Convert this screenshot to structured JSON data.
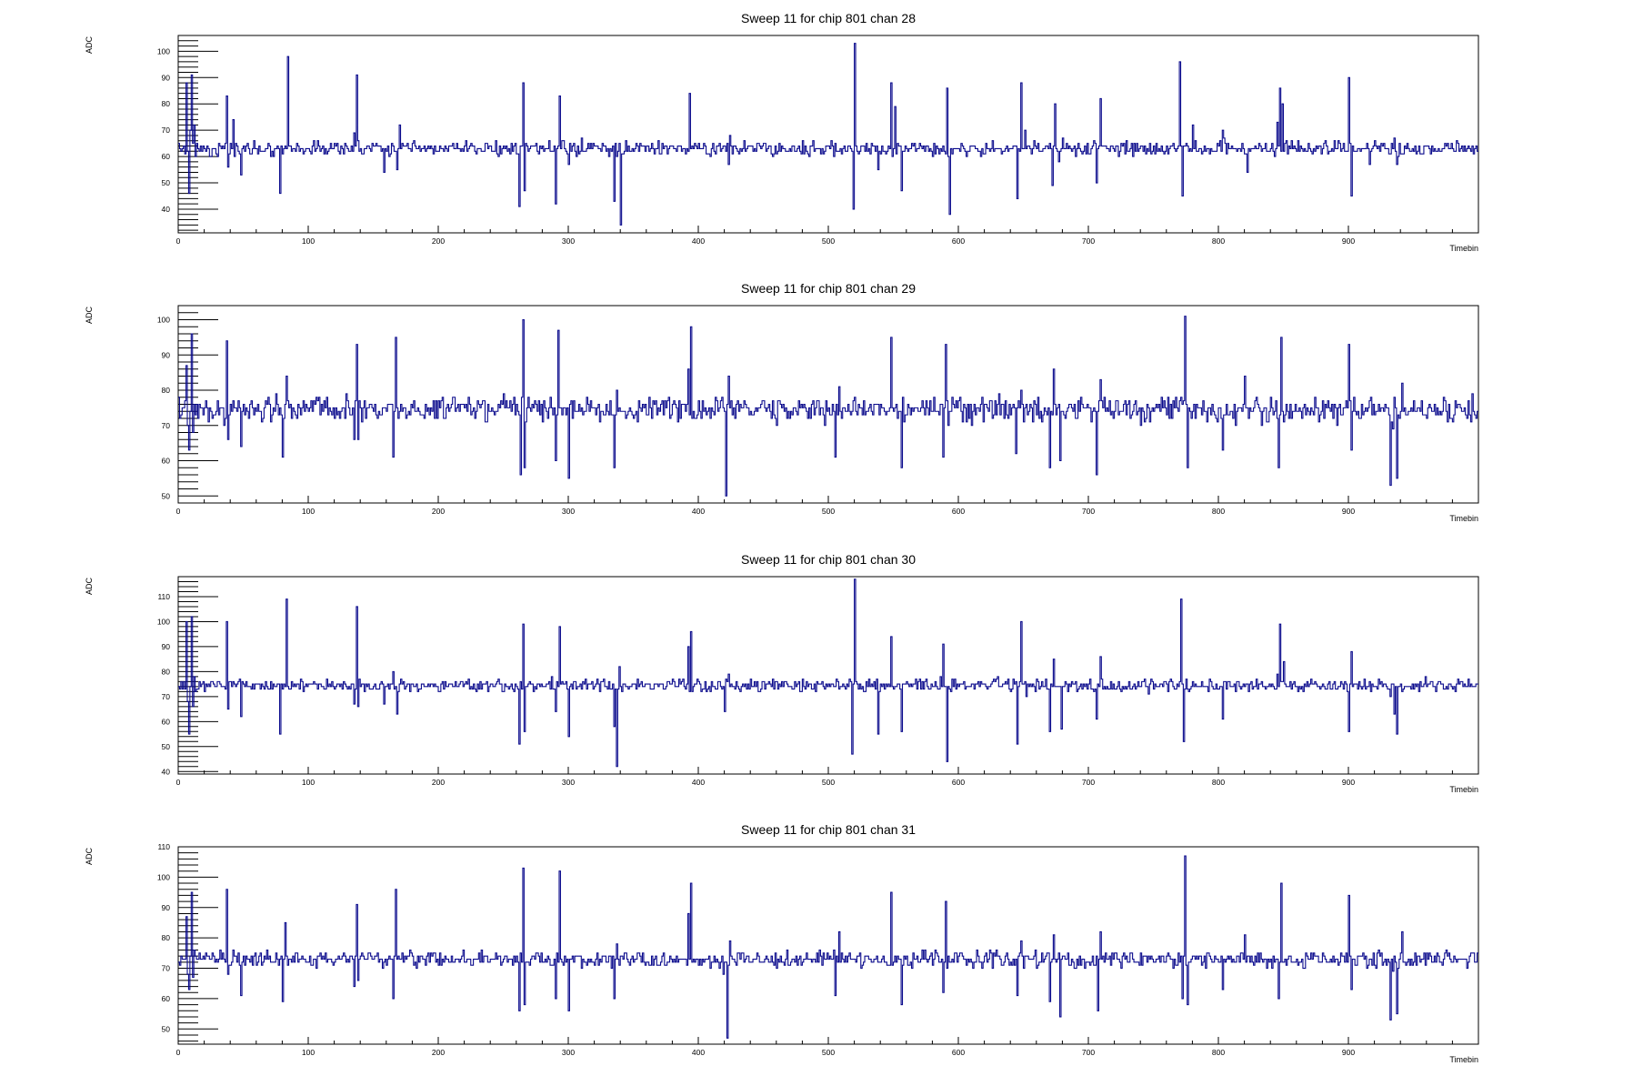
{
  "chart_data": [
    {
      "type": "line",
      "step": true,
      "title": "Sweep 11 for chip 801 chan 28",
      "xlabel": "Timebin",
      "ylabel": "ADC",
      "xlim": [
        0,
        1000
      ],
      "ylim": [
        31,
        106
      ],
      "xticks": [
        0,
        100,
        200,
        300,
        400,
        500,
        600,
        700,
        800,
        900
      ],
      "yticks": [
        40,
        50,
        60,
        70,
        80,
        90,
        100
      ],
      "baseline": 63,
      "noise": 1.6,
      "line_color": "#0a0a8c",
      "spikes": [
        [
          6,
          88
        ],
        [
          7,
          62
        ],
        [
          8,
          46
        ],
        [
          9,
          70
        ],
        [
          10,
          91
        ],
        [
          11,
          65
        ],
        [
          12,
          72
        ],
        [
          25,
          60
        ],
        [
          37,
          83
        ],
        [
          38,
          56
        ],
        [
          42,
          74
        ],
        [
          48,
          53
        ],
        [
          78,
          46
        ],
        [
          84,
          98
        ],
        [
          135,
          69
        ],
        [
          137,
          91
        ],
        [
          138,
          66
        ],
        [
          158,
          54
        ],
        [
          168,
          55
        ],
        [
          170,
          72
        ],
        [
          262,
          41
        ],
        [
          265,
          88
        ],
        [
          266,
          47
        ],
        [
          290,
          42
        ],
        [
          293,
          83
        ],
        [
          300,
          57
        ],
        [
          310,
          67
        ],
        [
          335,
          43
        ],
        [
          340,
          34
        ],
        [
          393,
          84
        ],
        [
          395,
          64
        ],
        [
          423,
          57
        ],
        [
          424,
          68
        ],
        [
          519,
          40
        ],
        [
          520,
          103
        ],
        [
          538,
          55
        ],
        [
          548,
          88
        ],
        [
          551,
          79
        ],
        [
          556,
          47
        ],
        [
          591,
          86
        ],
        [
          593,
          38
        ],
        [
          645,
          44
        ],
        [
          648,
          88
        ],
        [
          651,
          70
        ],
        [
          672,
          49
        ],
        [
          674,
          80
        ],
        [
          677,
          58
        ],
        [
          680,
          67
        ],
        [
          706,
          50
        ],
        [
          709,
          82
        ],
        [
          770,
          96
        ],
        [
          772,
          45
        ],
        [
          775,
          65
        ],
        [
          780,
          72
        ],
        [
          803,
          70
        ],
        [
          804,
          67
        ],
        [
          822,
          54
        ],
        [
          845,
          73
        ],
        [
          847,
          86
        ],
        [
          849,
          80
        ],
        [
          852,
          66
        ],
        [
          900,
          90
        ],
        [
          902,
          45
        ],
        [
          916,
          57
        ],
        [
          935,
          67
        ],
        [
          937,
          57
        ]
      ]
    },
    {
      "type": "line",
      "step": true,
      "title": "Sweep 11 for chip 801 chan 29",
      "xlabel": "Timebin",
      "ylabel": "ADC",
      "xlim": [
        0,
        1000
      ],
      "ylim": [
        48,
        104
      ],
      "xticks": [
        0,
        100,
        200,
        300,
        400,
        500,
        600,
        700,
        800,
        900
      ],
      "yticks": [
        50,
        60,
        70,
        80,
        90,
        100
      ],
      "baseline": 74.5,
      "noise": 2.2,
      "line_color": "#0a0a8c",
      "spikes": [
        [
          6,
          87
        ],
        [
          7,
          70
        ],
        [
          8,
          63
        ],
        [
          9,
          74
        ],
        [
          10,
          96
        ],
        [
          11,
          68
        ],
        [
          12,
          76
        ],
        [
          37,
          94
        ],
        [
          38,
          66
        ],
        [
          42,
          77
        ],
        [
          48,
          64
        ],
        [
          80,
          61
        ],
        [
          83,
          84
        ],
        [
          135,
          66
        ],
        [
          137,
          93
        ],
        [
          138,
          66
        ],
        [
          158,
          75
        ],
        [
          165,
          61
        ],
        [
          167,
          95
        ],
        [
          263,
          56
        ],
        [
          265,
          100
        ],
        [
          266,
          58
        ],
        [
          290,
          60
        ],
        [
          292,
          97
        ],
        [
          300,
          55
        ],
        [
          335,
          58
        ],
        [
          337,
          80
        ],
        [
          392,
          86
        ],
        [
          394,
          98
        ],
        [
          395,
          72
        ],
        [
          421,
          50
        ],
        [
          423,
          84
        ],
        [
          460,
          70
        ],
        [
          505,
          61
        ],
        [
          508,
          81
        ],
        [
          548,
          95
        ],
        [
          556,
          58
        ],
        [
          588,
          61
        ],
        [
          590,
          93
        ],
        [
          644,
          62
        ],
        [
          648,
          80
        ],
        [
          670,
          58
        ],
        [
          673,
          86
        ],
        [
          678,
          60
        ],
        [
          680,
          74
        ],
        [
          706,
          56
        ],
        [
          709,
          83
        ],
        [
          772,
          76
        ],
        [
          774,
          101
        ],
        [
          776,
          58
        ],
        [
          780,
          74
        ],
        [
          803,
          63
        ],
        [
          820,
          84
        ],
        [
          846,
          58
        ],
        [
          848,
          95
        ],
        [
          851,
          73
        ],
        [
          900,
          93
        ],
        [
          902,
          63
        ],
        [
          932,
          53
        ],
        [
          934,
          69
        ],
        [
          937,
          55
        ],
        [
          941,
          82
        ]
      ]
    },
    {
      "type": "line",
      "step": true,
      "title": "Sweep 11 for chip 801 chan 30",
      "xlabel": "Timebin",
      "ylabel": "ADC",
      "xlim": [
        0,
        1000
      ],
      "ylim": [
        39,
        118
      ],
      "xticks": [
        0,
        100,
        200,
        300,
        400,
        500,
        600,
        700,
        800,
        900
      ],
      "yticks": [
        40,
        50,
        60,
        70,
        80,
        90,
        100,
        110
      ],
      "baseline": 74.5,
      "noise": 1.5,
      "line_color": "#0a0a8c",
      "spikes": [
        [
          6,
          100
        ],
        [
          7,
          68
        ],
        [
          8,
          55
        ],
        [
          9,
          74
        ],
        [
          10,
          102
        ],
        [
          11,
          66
        ],
        [
          12,
          78
        ],
        [
          37,
          100
        ],
        [
          38,
          65
        ],
        [
          42,
          76
        ],
        [
          48,
          62
        ],
        [
          78,
          55
        ],
        [
          83,
          109
        ],
        [
          135,
          67
        ],
        [
          137,
          106
        ],
        [
          138,
          66
        ],
        [
          158,
          67
        ],
        [
          165,
          80
        ],
        [
          168,
          63
        ],
        [
          262,
          51
        ],
        [
          265,
          99
        ],
        [
          266,
          56
        ],
        [
          290,
          64
        ],
        [
          293,
          98
        ],
        [
          300,
          54
        ],
        [
          335,
          58
        ],
        [
          337,
          42
        ],
        [
          339,
          82
        ],
        [
          392,
          90
        ],
        [
          394,
          96
        ],
        [
          395,
          72
        ],
        [
          420,
          64
        ],
        [
          423,
          79
        ],
        [
          518,
          47
        ],
        [
          520,
          117
        ],
        [
          538,
          55
        ],
        [
          548,
          94
        ],
        [
          556,
          56
        ],
        [
          588,
          91
        ],
        [
          591,
          44
        ],
        [
          645,
          51
        ],
        [
          648,
          100
        ],
        [
          652,
          70
        ],
        [
          670,
          56
        ],
        [
          673,
          85
        ],
        [
          679,
          57
        ],
        [
          706,
          61
        ],
        [
          709,
          86
        ],
        [
          771,
          109
        ],
        [
          773,
          52
        ],
        [
          779,
          74
        ],
        [
          803,
          61
        ],
        [
          823,
          72
        ],
        [
          845,
          79
        ],
        [
          847,
          99
        ],
        [
          850,
          84
        ],
        [
          900,
          56
        ],
        [
          902,
          88
        ],
        [
          932,
          70
        ],
        [
          935,
          63
        ],
        [
          937,
          55
        ]
      ]
    },
    {
      "type": "line",
      "step": true,
      "title": "Sweep 11 for chip 801 chan 31",
      "xlabel": "Timebin",
      "ylabel": "ADC",
      "xlim": [
        0,
        1000
      ],
      "ylim": [
        45,
        110
      ],
      "xticks": [
        0,
        100,
        200,
        300,
        400,
        500,
        600,
        700,
        800,
        900
      ],
      "yticks": [
        50,
        60,
        70,
        80,
        90,
        100,
        110
      ],
      "baseline": 73,
      "noise": 1.6,
      "line_color": "#0a0a8c",
      "spikes": [
        [
          6,
          87
        ],
        [
          7,
          68
        ],
        [
          8,
          63
        ],
        [
          9,
          74
        ],
        [
          10,
          95
        ],
        [
          11,
          67
        ],
        [
          12,
          76
        ],
        [
          37,
          96
        ],
        [
          38,
          68
        ],
        [
          42,
          76
        ],
        [
          48,
          61
        ],
        [
          80,
          59
        ],
        [
          82,
          85
        ],
        [
          135,
          64
        ],
        [
          137,
          91
        ],
        [
          138,
          66
        ],
        [
          158,
          72
        ],
        [
          165,
          60
        ],
        [
          167,
          96
        ],
        [
          262,
          56
        ],
        [
          265,
          103
        ],
        [
          266,
          58
        ],
        [
          290,
          60
        ],
        [
          293,
          102
        ],
        [
          300,
          56
        ],
        [
          335,
          60
        ],
        [
          337,
          78
        ],
        [
          392,
          88
        ],
        [
          394,
          98
        ],
        [
          395,
          72
        ],
        [
          419,
          68
        ],
        [
          422,
          47
        ],
        [
          424,
          79
        ],
        [
          460,
          70
        ],
        [
          505,
          61
        ],
        [
          508,
          82
        ],
        [
          548,
          95
        ],
        [
          556,
          58
        ],
        [
          588,
          62
        ],
        [
          590,
          92
        ],
        [
          645,
          61
        ],
        [
          648,
          79
        ],
        [
          670,
          59
        ],
        [
          673,
          81
        ],
        [
          678,
          54
        ],
        [
          680,
          74
        ],
        [
          707,
          56
        ],
        [
          709,
          82
        ],
        [
          772,
          60
        ],
        [
          774,
          107
        ],
        [
          776,
          58
        ],
        [
          803,
          63
        ],
        [
          820,
          81
        ],
        [
          846,
          60
        ],
        [
          848,
          98
        ],
        [
          851,
          73
        ],
        [
          900,
          94
        ],
        [
          902,
          63
        ],
        [
          932,
          53
        ],
        [
          934,
          69
        ],
        [
          937,
          55
        ],
        [
          941,
          82
        ]
      ]
    }
  ]
}
